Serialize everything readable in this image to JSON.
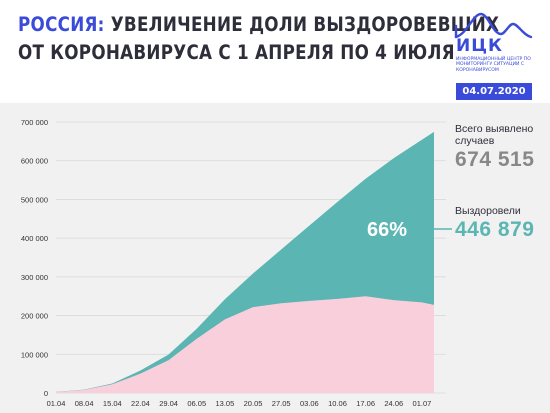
{
  "header": {
    "title_accent": "РОССИЯ:",
    "title_line1_rest": " УВЕЛИЧЕНИЕ ДОЛИ ВЫЗДОРОВЕВШИХ",
    "title_line2": "ОТ КОРОНАВИРУСА С 1 АПРЕЛЯ ПО 4 ИЮЛЯ",
    "logo_text": "ИЦК",
    "logo_subtitle": "ИНФОРМАЦИОННЫЙ ЦЕНТР ПО МОНИТОРИНГУ СИТУАЦИИ С КОРОНАВИРУСОМ",
    "date": "04.07.2020",
    "accent_color": "#3b4bd9"
  },
  "side": {
    "total_label": "Всего выявлено случаев",
    "total_value": "674 515",
    "recovered_label": "Выздоровели",
    "recovered_value": "446 879",
    "share_label": "66%"
  },
  "chart_data": {
    "type": "area",
    "title": "",
    "xlabel": "",
    "ylabel": "",
    "ylim": [
      0,
      700000
    ],
    "yticks": [
      0,
      100000,
      200000,
      300000,
      400000,
      500000,
      600000,
      700000
    ],
    "ytick_labels": [
      "0",
      "100 000",
      "200 000",
      "300 000",
      "400 000",
      "500 000",
      "600 000",
      "700 000"
    ],
    "x_range": [
      "01.04",
      "04.07"
    ],
    "xtick_labels": [
      "01.04",
      "08.04",
      "15.04",
      "22.04",
      "29.04",
      "06.05",
      "13.05",
      "20.05",
      "27.05",
      "03.06",
      "10.06",
      "17.06",
      "24.06",
      "01.07"
    ],
    "grid": "horizontal",
    "colors": {
      "total": "#5ab5b3",
      "recovered_part": "#f9cfdc",
      "label": "#ffffff",
      "connector": "#5ab5b3"
    },
    "series": [
      {
        "role": "total",
        "x": [
          "01.04",
          "08.04",
          "15.04",
          "22.04",
          "29.04",
          "06.05",
          "13.05",
          "20.05",
          "27.05",
          "03.06",
          "10.06",
          "17.06",
          "24.06",
          "01.07",
          "04.07"
        ],
        "values": [
          2777,
          8672,
          24490,
          57999,
          99399,
          165929,
          242271,
          308705,
          370680,
          432277,
          493657,
          553301,
          606881,
          654405,
          674515
        ]
      },
      {
        "role": "lower",
        "x": [
          "01.04",
          "08.04",
          "15.04",
          "22.04",
          "29.04",
          "06.05",
          "13.05",
          "20.05",
          "27.05",
          "03.06",
          "10.06",
          "17.06",
          "24.06",
          "01.07",
          "04.07"
        ],
        "values": [
          2550,
          8000,
          22500,
          50000,
          85000,
          140000,
          190000,
          222000,
          232000,
          238000,
          243000,
          250000,
          240000,
          234000,
          227636
        ]
      }
    ]
  }
}
